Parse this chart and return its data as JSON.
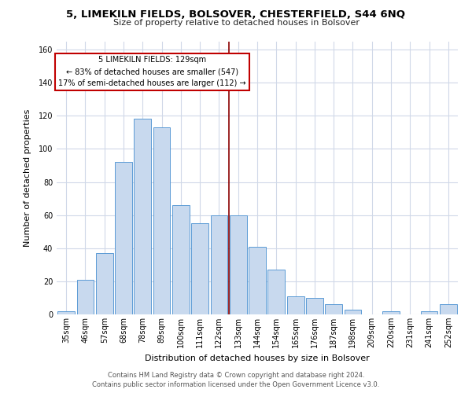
{
  "title": "5, LIMEKILN FIELDS, BOLSOVER, CHESTERFIELD, S44 6NQ",
  "subtitle": "Size of property relative to detached houses in Bolsover",
  "xlabel": "Distribution of detached houses by size in Bolsover",
  "ylabel": "Number of detached properties",
  "bar_labels": [
    "35sqm",
    "46sqm",
    "57sqm",
    "68sqm",
    "78sqm",
    "89sqm",
    "100sqm",
    "111sqm",
    "122sqm",
    "133sqm",
    "144sqm",
    "154sqm",
    "165sqm",
    "176sqm",
    "187sqm",
    "198sqm",
    "209sqm",
    "220sqm",
    "231sqm",
    "241sqm",
    "252sqm"
  ],
  "bar_heights": [
    2,
    21,
    37,
    92,
    118,
    113,
    66,
    55,
    60,
    60,
    41,
    27,
    11,
    10,
    6,
    3,
    0,
    2,
    0,
    2,
    6
  ],
  "bar_color": "#c8d9ee",
  "bar_edge_color": "#5b9bd5",
  "vline_x_index": 8.5,
  "vline_color": "#8b0000",
  "annotation_title": "5 LIMEKILN FIELDS: 129sqm",
  "annotation_line1": "← 83% of detached houses are smaller (547)",
  "annotation_line2": "17% of semi-detached houses are larger (112) →",
  "annotation_box_color": "#ffffff",
  "annotation_box_edge": "#c00000",
  "ylim": [
    0,
    165
  ],
  "yticks": [
    0,
    20,
    40,
    60,
    80,
    100,
    120,
    140,
    160
  ],
  "footer1": "Contains HM Land Registry data © Crown copyright and database right 2024.",
  "footer2": "Contains public sector information licensed under the Open Government Licence v3.0.",
  "background_color": "#ffffff",
  "grid_color": "#d0d8e8",
  "title_fontsize": 9.5,
  "subtitle_fontsize": 8,
  "axis_label_fontsize": 8,
  "tick_fontsize": 7,
  "footer_fontsize": 6
}
